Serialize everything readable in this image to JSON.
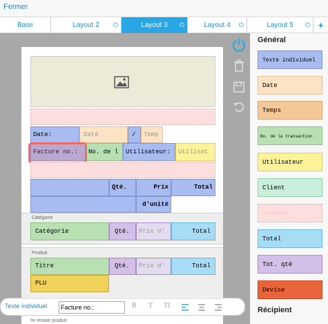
{
  "header": {
    "close_label": "Fermer"
  },
  "tabs": [
    {
      "label": "Base"
    },
    {
      "label": "Layout 2"
    },
    {
      "label": "Layout 3"
    },
    {
      "label": "Layout 4"
    },
    {
      "label": "Layout 5"
    }
  ],
  "tab_power_icon": "power-icon",
  "add_tab_label": "+",
  "colors": {
    "accent": "#28a6e5",
    "highlight": "#ee6b6b"
  },
  "layout": {
    "date_label": "Date:",
    "date_placeholder": "Date",
    "slash": "/",
    "time_placeholder": "Temp",
    "invoice_label": "Facture no.:",
    "invoice_placeholder": "No. de l",
    "user_label": "Utilisateur:",
    "user_placeholder": "Utilisat",
    "qty_header": "Qté.",
    "price_header_1": "Prix",
    "price_header_2": "d'unité",
    "total_header": "Total",
    "category_section": "Catégorie",
    "category_field": "Catégorie",
    "category_qty": "Qté.",
    "category_price": "Prix d'",
    "category_total": "Total",
    "product_section": "Produit",
    "product_title": "Titre",
    "product_qty": "Qté.",
    "product_price": "Prix d'",
    "product_total": "Total",
    "product_plu": "PLU",
    "discount_section": "% remise produit"
  },
  "palette": {
    "general_title": "Général",
    "items": [
      "Texte individuel",
      "Date",
      "Temps",
      "No. de la transaction",
      "Utilisateur",
      "Client",
      "-------",
      "Total",
      "Tot. qté",
      "Devise"
    ],
    "recipient_title": "Récipient"
  },
  "bottom": {
    "label": "Texte individuel",
    "input_value": "Facture no.:",
    "bold": "B",
    "italic": "T",
    "size": "TI"
  }
}
